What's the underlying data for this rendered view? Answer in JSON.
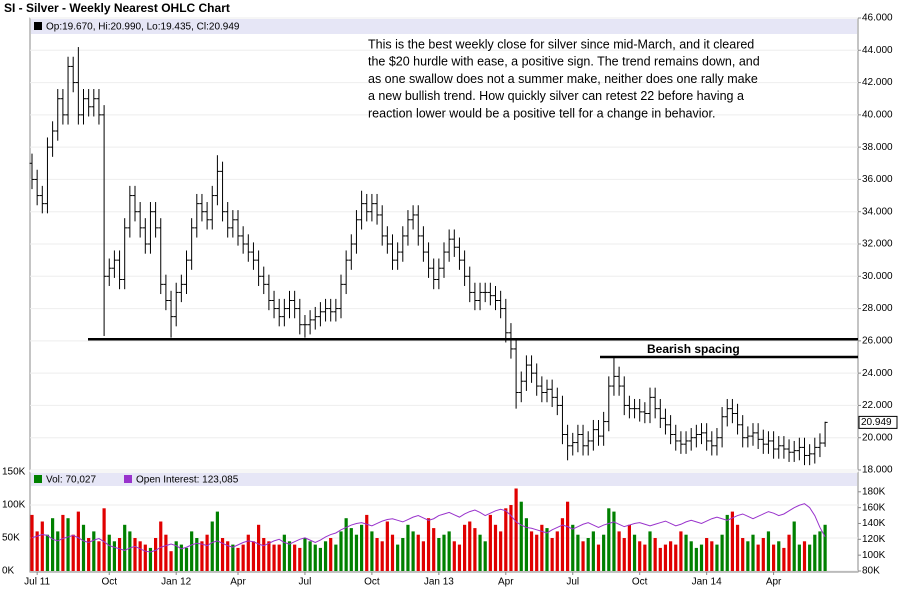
{
  "chart_data": {
    "type": "ohlc",
    "title": "SI - Silver - Weekly Nearest OHLC Chart",
    "legend_text": "Op:19.670, Hi:20.990, Lo:19.435, Cl:20.949",
    "annotation": [
      "This is the best weekly close for silver since mid-March, and it cleared",
      "the $20 hurdle with ease, a positive sign.  The trend remains down, and",
      "as one swallow does not a summer make, neither does one rally make",
      "a new bullish trend.  How quickly silver can retest 22 before having a",
      "reaction lower would be a positive tell for a change in behavior."
    ],
    "hline_label": "Bearish spacing",
    "hlines": [
      {
        "value": 26.1
      },
      {
        "value": 25.0
      }
    ],
    "bar_color": "#000000",
    "ylim": [
      18,
      46
    ],
    "yticks": [
      {
        "value": 18,
        "label": "18.000"
      },
      {
        "value": 20,
        "label": "20.000"
      },
      {
        "value": 22,
        "label": "22.000"
      },
      {
        "value": 24,
        "label": "24.000"
      },
      {
        "value": 26,
        "label": "26.000"
      },
      {
        "value": 28,
        "label": "28.000"
      },
      {
        "value": 30,
        "label": "30.000"
      },
      {
        "value": 32,
        "label": "32.000"
      },
      {
        "value": 34,
        "label": "34.000"
      },
      {
        "value": 36,
        "label": "36.000"
      },
      {
        "value": 38,
        "label": "38.000"
      },
      {
        "value": 40,
        "label": "40.000"
      },
      {
        "value": 42,
        "label": "42.000"
      },
      {
        "value": 44,
        "label": "44.000"
      },
      {
        "value": 46,
        "label": "46.000"
      }
    ],
    "xticks": [
      {
        "value": 1,
        "label": "Jul 11"
      },
      {
        "value": 15,
        "label": "Oct"
      },
      {
        "value": 28,
        "label": "Jan 12"
      },
      {
        "value": 40,
        "label": "Apr"
      },
      {
        "value": 53,
        "label": "Jul"
      },
      {
        "value": 66,
        "label": "Oct"
      },
      {
        "value": 79,
        "label": "Jan 13"
      },
      {
        "value": 92,
        "label": "Apr"
      },
      {
        "value": 105,
        "label": "Jul"
      },
      {
        "value": 118,
        "label": "Oct"
      },
      {
        "value": 131,
        "label": "Jan 14"
      },
      {
        "value": 144,
        "label": "Apr"
      }
    ],
    "open": [
      37,
      36,
      35,
      34.5,
      38,
      39,
      41,
      40,
      43,
      42,
      40,
      41,
      40.5,
      41,
      40,
      30,
      30.5,
      31,
      29.8,
      33,
      35,
      34,
      33,
      32,
      34,
      33,
      29.5,
      28.5,
      27.5,
      29,
      29.5,
      31,
      33,
      34.5,
      34,
      33.5,
      35,
      36.5,
      34,
      33,
      33.5,
      32.5,
      32,
      31.5,
      31,
      30,
      29.5,
      28.5,
      28,
      27.5,
      28,
      28.5,
      28,
      27,
      27,
      27.3,
      27.5,
      27.8,
      28,
      27.8,
      28,
      29.5,
      31,
      32,
      33.5,
      34.5,
      34,
      34.5,
      33.8,
      32.5,
      32,
      31,
      31.5,
      32.5,
      33.5,
      33.8,
      32.5,
      31.5,
      30.5,
      29.8,
      30.5,
      31.5,
      32.3,
      31.8,
      31,
      30,
      29,
      28.5,
      29,
      29,
      28.8,
      28.5,
      28,
      26.5,
      25.5,
      22.8,
      23.5,
      24.5,
      24,
      23.2,
      22.8,
      23,
      22.5,
      22,
      20.2,
      19.5,
      19.7,
      20.2,
      19.5,
      19.8,
      20.5,
      20.1,
      21,
      23.2,
      23.8,
      23.2,
      22,
      21.8,
      21.8,
      21.6,
      21.5,
      22.5,
      21.8,
      21.2,
      20.8,
      20.2,
      19.8,
      19.6,
      19.8,
      20,
      20.2,
      20.3,
      19.8,
      19.5,
      20,
      21.3,
      21.8,
      21.5,
      20.8,
      20,
      20.1,
      20.3,
      19.9,
      19.6,
      19.8,
      19.3,
      19.5,
      19.3,
      19.1,
      19.2,
      19.4,
      18.9,
      19,
      19.4,
      19.67
    ],
    "high": [
      37.6,
      36.6,
      35.6,
      38.6,
      39.6,
      41.6,
      41.6,
      43.6,
      43.6,
      44.2,
      41.6,
      41.6,
      41.6,
      41.6,
      40.6,
      31.1,
      31.6,
      31.6,
      33.6,
      35.6,
      35.6,
      34.6,
      33.6,
      34.6,
      34.6,
      33.6,
      30.1,
      29.1,
      29.6,
      30.1,
      31.6,
      33.6,
      35.1,
      35.1,
      34.6,
      35.6,
      37.5,
      37.1,
      34.6,
      34.1,
      34.1,
      33.1,
      32.6,
      32.1,
      31.6,
      30.6,
      30.1,
      29.1,
      28.6,
      28.6,
      29.1,
      29.1,
      28.6,
      27.6,
      27.9,
      28.1,
      28.4,
      28.6,
      28.6,
      28.6,
      30.1,
      31.6,
      32.6,
      34.1,
      35.3,
      35.1,
      35.1,
      35.1,
      34.4,
      33.1,
      32.6,
      32.1,
      33.1,
      34.1,
      34.4,
      34.4,
      33.1,
      32.1,
      31.1,
      31.1,
      32.1,
      32.9,
      32.9,
      32.4,
      31.6,
      30.6,
      29.6,
      29.6,
      29.6,
      29.6,
      29.4,
      29.1,
      28.6,
      27.1,
      26.1,
      24.1,
      25.1,
      25.1,
      24.6,
      23.8,
      23.6,
      23.6,
      23.1,
      22.6,
      20.8,
      20.3,
      20.8,
      20.8,
      20.4,
      21.1,
      21.1,
      21.6,
      23.8,
      25,
      24.4,
      23.8,
      22.6,
      22.4,
      22.4,
      22.2,
      23.1,
      23.1,
      22.4,
      21.8,
      21.4,
      20.8,
      20.4,
      20.4,
      20.6,
      20.8,
      20.9,
      20.9,
      20.4,
      20.6,
      21.9,
      22.4,
      22.4,
      22.1,
      21.4,
      20.7,
      20.9,
      20.9,
      20.5,
      20.4,
      20.4,
      20.1,
      20.1,
      19.9,
      19.8,
      20,
      20,
      19.6,
      20,
      20.27,
      20.99
    ],
    "low": [
      35.4,
      34.4,
      33.9,
      33.9,
      37.4,
      38.4,
      39.4,
      39.4,
      41.4,
      39.4,
      39.4,
      39.9,
      39.9,
      39.4,
      26.3,
      29.4,
      29.9,
      29.2,
      29.2,
      32.4,
      33.4,
      32.4,
      31.4,
      31.4,
      32.4,
      28.9,
      27.9,
      26.2,
      26.9,
      28.4,
      28.9,
      30.4,
      32.4,
      33.4,
      32.9,
      32.9,
      34.4,
      33.4,
      32.4,
      32.4,
      31.9,
      31.4,
      30.9,
      30.4,
      29.4,
      28.9,
      27.9,
      27.4,
      26.9,
      26.9,
      27.4,
      27.4,
      26.4,
      26.2,
      26.4,
      26.7,
      26.9,
      27.2,
      27.2,
      27.2,
      27.4,
      28.9,
      30.4,
      31.4,
      32.9,
      33.4,
      33.4,
      33.2,
      31.9,
      31.4,
      30.4,
      30.4,
      30.9,
      31.9,
      32.9,
      31.9,
      30.9,
      29.9,
      29.2,
      29.2,
      29.9,
      30.9,
      31.2,
      30.4,
      29.4,
      28.4,
      27.9,
      27.9,
      28.4,
      28.2,
      27.9,
      27.4,
      25.9,
      24.9,
      21.8,
      22.2,
      22.9,
      23.4,
      22.6,
      22.2,
      22.2,
      21.9,
      21.4,
      19.6,
      18.6,
      18.9,
      19.1,
      18.9,
      18.9,
      19.2,
      19.5,
      19.5,
      20.4,
      22.6,
      22.6,
      21.4,
      21.2,
      21.2,
      21,
      20.9,
      20.9,
      21.2,
      20.6,
      20.2,
      19.6,
      19.2,
      19,
      19,
      19.2,
      19.4,
      19.6,
      19.2,
      18.9,
      18.9,
      19.4,
      20.7,
      20.9,
      20.2,
      19.4,
      19.4,
      19.5,
      19.3,
      19,
      19,
      18.7,
      18.7,
      18.7,
      18.5,
      18.5,
      18.6,
      18.3,
      18.3,
      18.4,
      18.8,
      19.435
    ],
    "close": [
      36,
      35,
      34.5,
      38,
      39,
      41,
      40,
      43,
      42,
      40,
      41,
      40.5,
      41,
      40,
      30,
      30.5,
      31,
      29.8,
      33,
      35,
      34,
      33,
      32,
      34,
      33,
      29.5,
      28.5,
      27.5,
      29,
      29.5,
      31,
      33,
      34.5,
      34,
      33.5,
      35,
      36.5,
      34,
      33,
      33.5,
      32.5,
      32,
      31.5,
      31,
      30,
      29.5,
      28.5,
      28,
      27.5,
      28,
      28.5,
      28,
      27,
      27,
      27.3,
      27.5,
      27.8,
      28,
      27.8,
      28,
      29.5,
      31,
      32,
      33.5,
      34.5,
      34,
      34.5,
      33.8,
      32.5,
      32,
      31,
      31.5,
      32.5,
      33.5,
      33.8,
      32.5,
      31.5,
      30.5,
      29.8,
      30.5,
      31.5,
      32.3,
      31.8,
      31,
      30,
      29,
      28.5,
      29,
      29,
      28.8,
      28.5,
      28,
      26.5,
      25.5,
      22.8,
      23.5,
      24.5,
      24,
      23.2,
      22.8,
      23,
      22.5,
      22,
      20.2,
      19.5,
      19.7,
      20.2,
      19.5,
      19.8,
      20.5,
      20.1,
      21,
      23.2,
      23.8,
      23.2,
      22,
      21.8,
      21.8,
      21.6,
      21.5,
      22.5,
      21.8,
      21.2,
      20.8,
      20.2,
      19.8,
      19.6,
      19.8,
      20,
      20.2,
      20.3,
      19.8,
      19.5,
      20,
      21.3,
      21.8,
      21.5,
      20.8,
      20,
      20.1,
      20.3,
      19.9,
      19.6,
      19.8,
      19.3,
      19.5,
      19.3,
      19.1,
      19.2,
      19.4,
      18.9,
      19,
      19.4,
      19.67,
      20.949
    ],
    "volume_panel": {
      "legend_volume": "Vol: 70,027",
      "legend_oi": "Open Interest: 123,085",
      "up_color": "#008000",
      "down_color": "#e00000",
      "oi_color": "#9933cc",
      "ylim": [
        0,
        150
      ],
      "yticks": [
        {
          "value": 0,
          "label": "0K"
        },
        {
          "value": 50,
          "label": "50K"
        },
        {
          "value": 100,
          "label": "100K"
        },
        {
          "value": 150,
          "label": "150K"
        }
      ],
      "y2lim": [
        80,
        205
      ],
      "y2ticks": [
        {
          "value": 80,
          "label": "80K"
        },
        {
          "value": 100,
          "label": "100K"
        },
        {
          "value": 120,
          "label": "120K"
        },
        {
          "value": 140,
          "label": "140K"
        },
        {
          "value": 160,
          "label": "160K"
        },
        {
          "value": 180,
          "label": "180K"
        }
      ],
      "volume": [
        85,
        60,
        75,
        55,
        80,
        60,
        85,
        80,
        55,
        90,
        70,
        50,
        60,
        45,
        95,
        55,
        45,
        50,
        70,
        60,
        50,
        45,
        40,
        35,
        50,
        75,
        55,
        30,
        45,
        40,
        35,
        60,
        50,
        45,
        55,
        75,
        90,
        50,
        45,
        40,
        35,
        40,
        55,
        45,
        70,
        50,
        45,
        40,
        40,
        55,
        45,
        40,
        35,
        50,
        45,
        40,
        35,
        45,
        50,
        40,
        60,
        80,
        65,
        55,
        70,
        85,
        60,
        50,
        45,
        75,
        55,
        40,
        50,
        70,
        60,
        55,
        45,
        80,
        65,
        50,
        55,
        60,
        45,
        40,
        70,
        75,
        65,
        55,
        45,
        85,
        70,
        60,
        95,
        100,
        125,
        105,
        80,
        60,
        55,
        70,
        65,
        50,
        60,
        80,
        105,
        70,
        55,
        45,
        50,
        60,
        40,
        55,
        95,
        90,
        60,
        50,
        70,
        55,
        45,
        40,
        60,
        50,
        35,
        40,
        45,
        40,
        60,
        55,
        45,
        35,
        40,
        50,
        45,
        40,
        55,
        85,
        90,
        70,
        50,
        45,
        55,
        40,
        50,
        60,
        40,
        45,
        35,
        55,
        75,
        40,
        45,
        40,
        55,
        60,
        70.027
      ],
      "open_interest": [
        122,
        124,
        126,
        125,
        120,
        118,
        121,
        123,
        125,
        122,
        118,
        116,
        119,
        121,
        117,
        112,
        110,
        108,
        106,
        109,
        111,
        108,
        105,
        104,
        106,
        110,
        112,
        114,
        112,
        108,
        110,
        113,
        115,
        114,
        112,
        116,
        118,
        115,
        112,
        110,
        113,
        116,
        118,
        117,
        114,
        112,
        115,
        118,
        120,
        116,
        114,
        117,
        120,
        122,
        119,
        116,
        119,
        123,
        126,
        128,
        132,
        135,
        138,
        140,
        141,
        139,
        137,
        140,
        143,
        145,
        146,
        144,
        142,
        145,
        148,
        150,
        147,
        144,
        146,
        150,
        152,
        154,
        151,
        148,
        152,
        155,
        157,
        154,
        150,
        153,
        156,
        158,
        156,
        150,
        142,
        138,
        135,
        134,
        132,
        130,
        128,
        132,
        135,
        138,
        136,
        133,
        136,
        139,
        141,
        138,
        135,
        138,
        140,
        142,
        139,
        136,
        138,
        140,
        141,
        139,
        137,
        139,
        141,
        143,
        140,
        137,
        139,
        142,
        144,
        142,
        140,
        143,
        146,
        148,
        146,
        144,
        147,
        150,
        152,
        149,
        146,
        149,
        152,
        155,
        153,
        150,
        152,
        156,
        160,
        163,
        165,
        160,
        150,
        135,
        123.085
      ]
    }
  }
}
